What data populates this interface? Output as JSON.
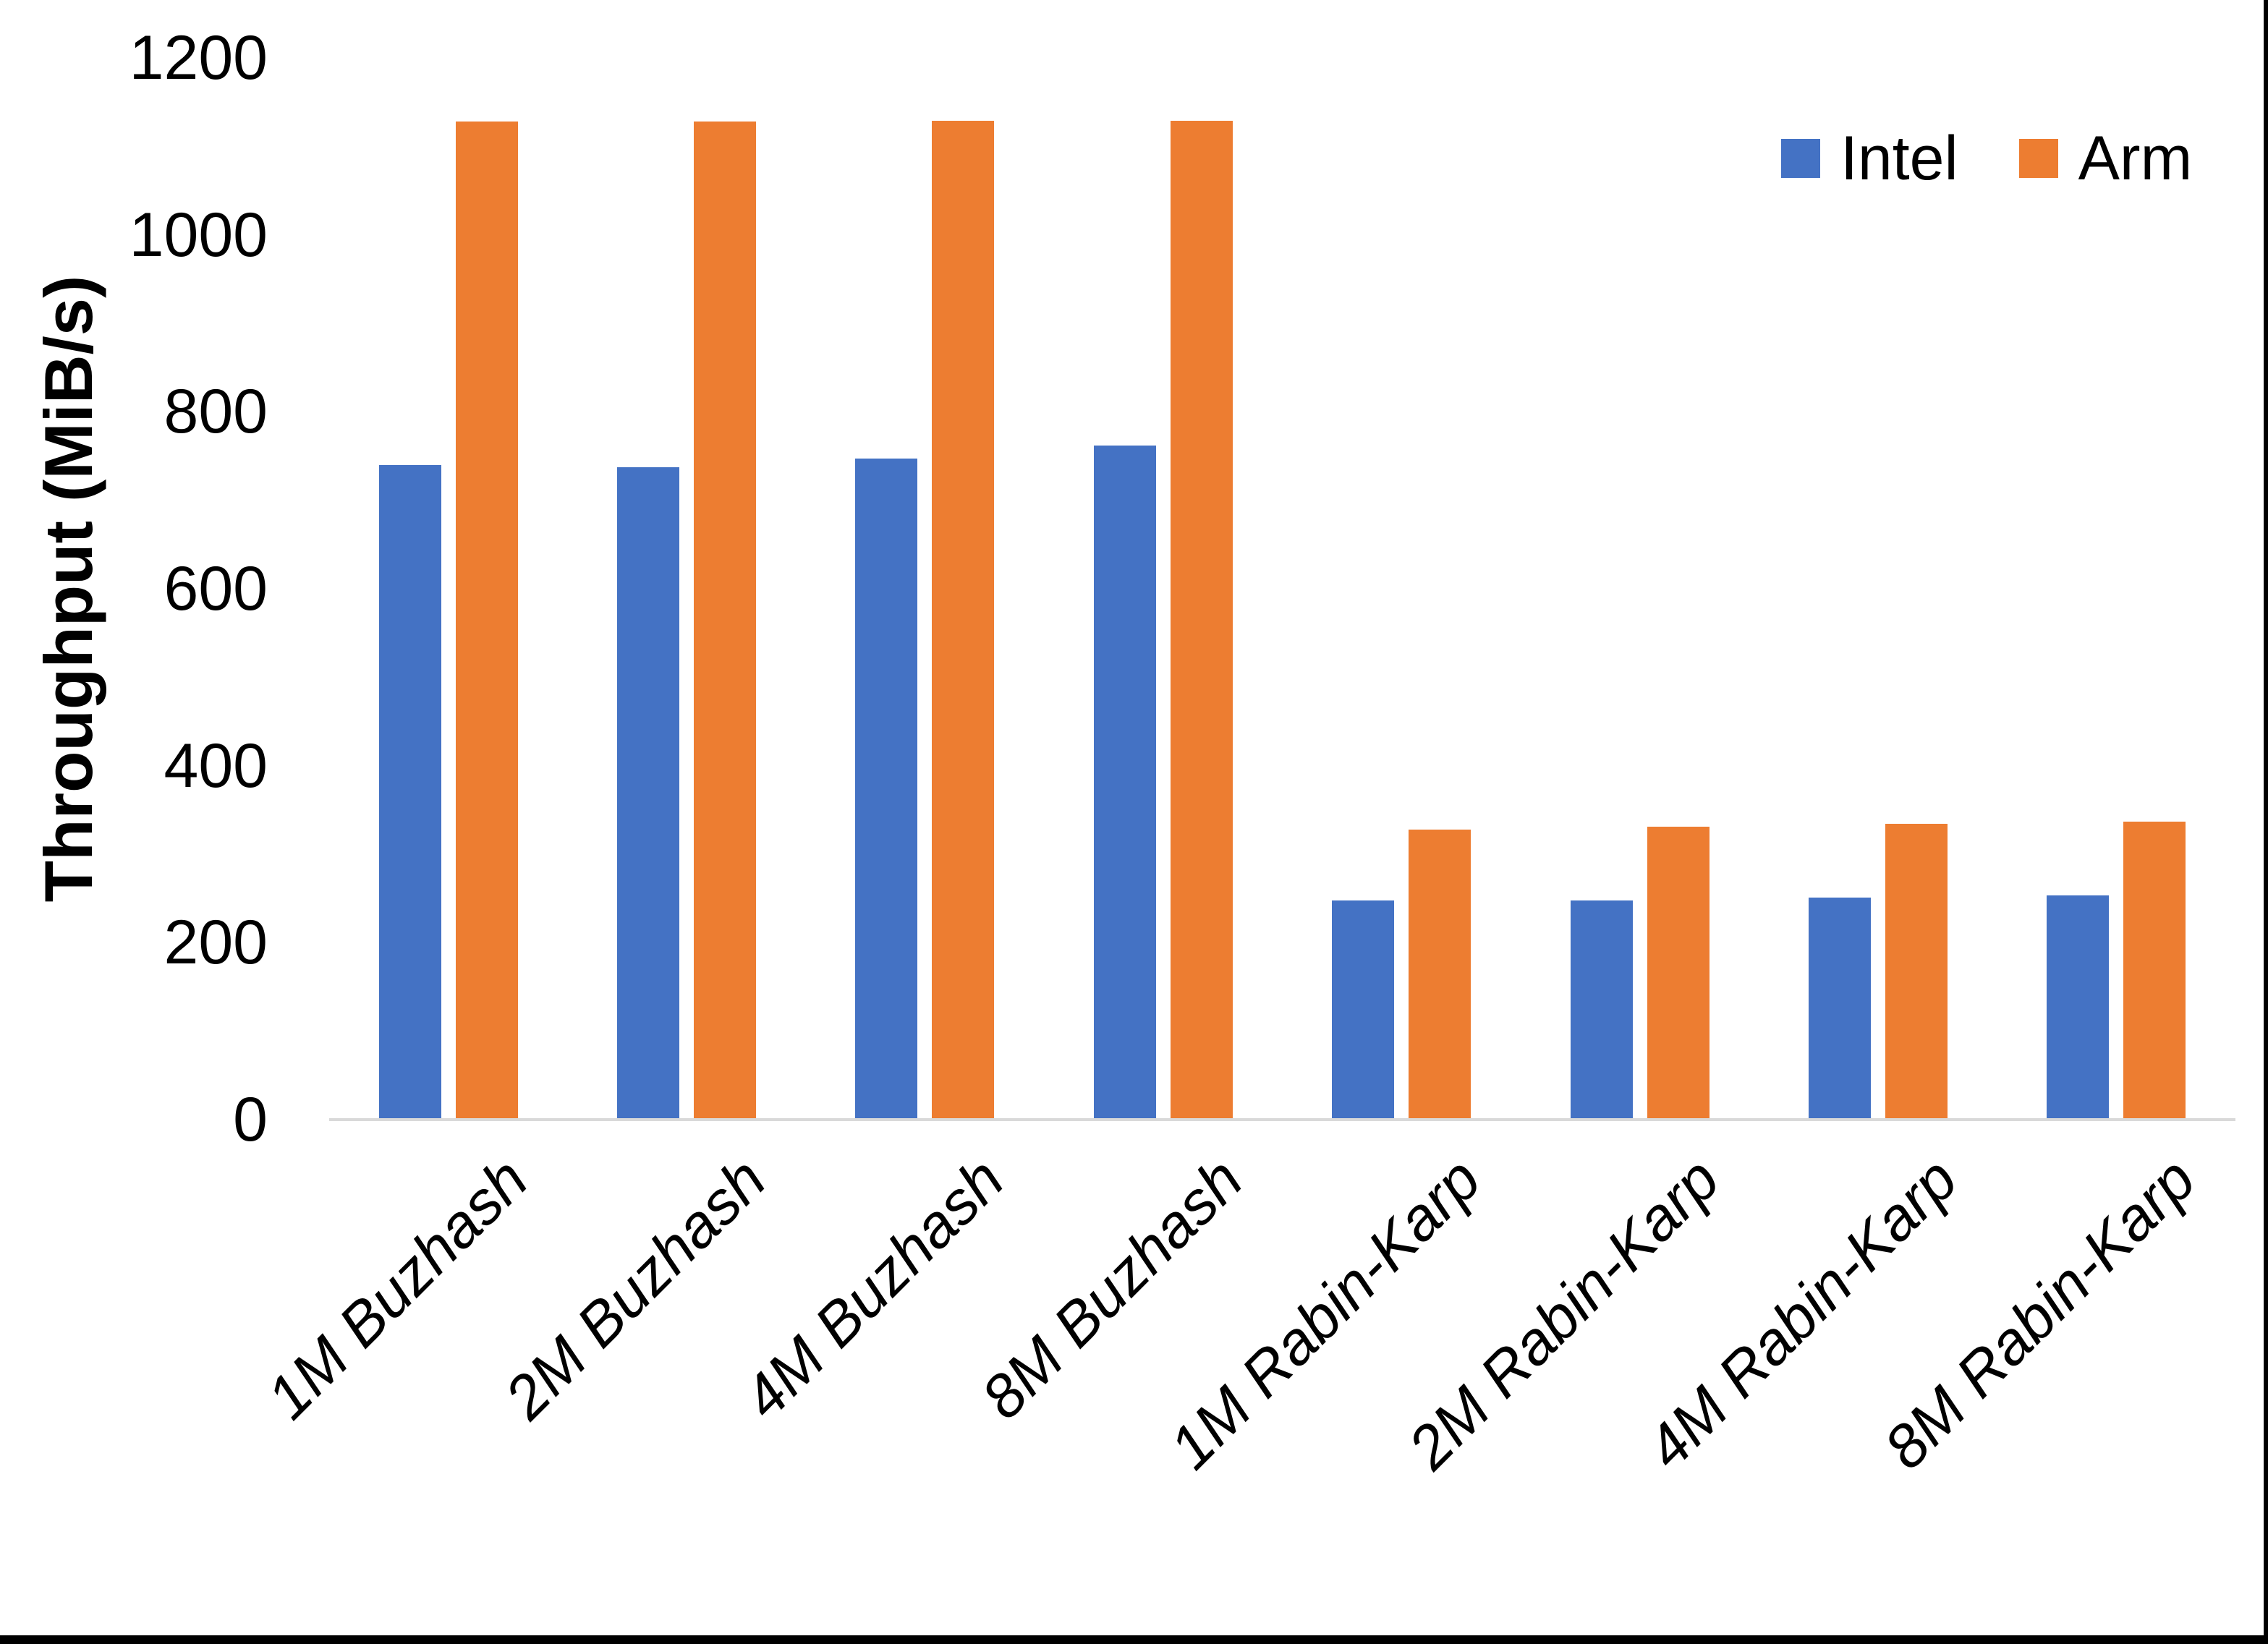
{
  "chart_data": {
    "type": "bar",
    "title": "",
    "categories": [
      "1M Buzhash",
      "2M Buzhash",
      "4M Buzhash",
      "8M Buzhash",
      "1M Rabin-Karp",
      "2M Rabin-Karp",
      "4M Rabin-Karp",
      "8M Rabin-Karp"
    ],
    "series": [
      {
        "name": "Intel",
        "color": "#4472C4",
        "values": [
          740,
          737,
          747,
          762,
          248,
          248,
          251,
          253
        ]
      },
      {
        "name": "Arm",
        "color": "#ED7D31",
        "values": [
          1128,
          1128,
          1129,
          1129,
          328,
          331,
          334,
          337
        ]
      }
    ],
    "xlabel": "",
    "ylabel": "Throughput (MiB/s)",
    "ylim": [
      0,
      1200
    ],
    "ytick_step": 200,
    "yticks": [
      0,
      200,
      400,
      600,
      800,
      1000,
      1200
    ],
    "grid": false,
    "legend_position": "top-right",
    "axis_line_color": "#D9D9D9",
    "frame_border_color": "#000000"
  }
}
